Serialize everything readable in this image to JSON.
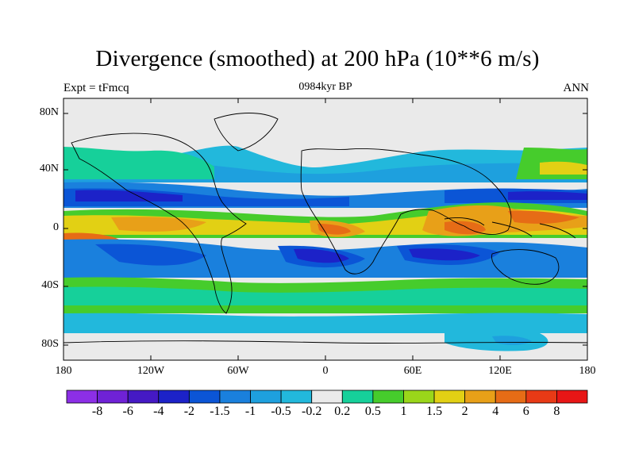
{
  "map": {
    "title": "Divergence (smoothed) at 200 hPa (10**6 m/s)",
    "experiment_label": "Expt = tFmcq",
    "time_label": "0984kyr BP",
    "season_label": "ANN",
    "latitude_ticks": [
      "80N",
      "40N",
      "0",
      "40S",
      "80S"
    ],
    "longitude_ticks": [
      "180",
      "120W",
      "60W",
      "0",
      "60E",
      "120E",
      "180"
    ]
  },
  "colorbar": {
    "colors": [
      "#8c2fe6",
      "#6f22d6",
      "#4519c4",
      "#1c22c8",
      "#0b55d6",
      "#1a80dd",
      "#1ea0de",
      "#22b8dc",
      "#eaeaea",
      "#16d09a",
      "#46cc2c",
      "#9ad61a",
      "#e2d014",
      "#e8a018",
      "#e66c16",
      "#e83a16",
      "#e81616"
    ],
    "labels": [
      "-8",
      "-6",
      "-4",
      "-2",
      "-1.5",
      "-1",
      "-0.5",
      "-0.2",
      "0.2",
      "0.5",
      "1",
      "1.5",
      "2",
      "4",
      "6",
      "8"
    ]
  }
}
